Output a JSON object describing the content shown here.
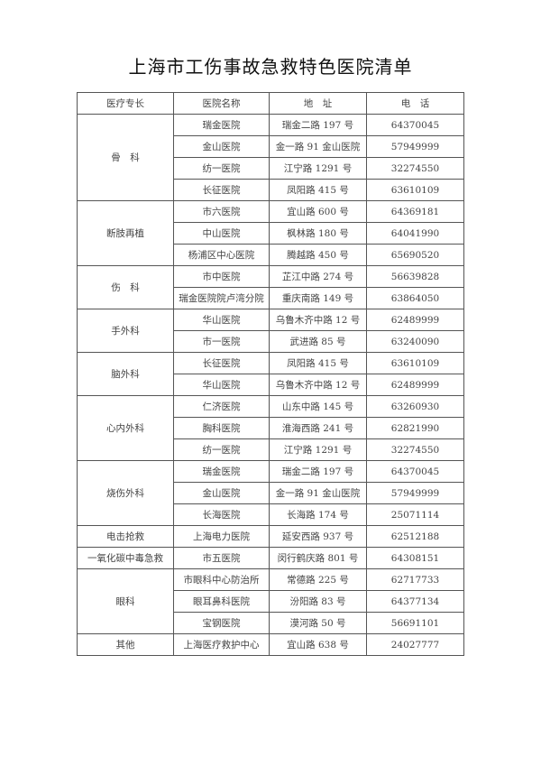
{
  "title": "上海市工伤事故急救特色医院清单",
  "headers": [
    "医疗专长",
    "医院名称",
    "地　址",
    "电　话"
  ],
  "groups": [
    {
      "specialty": "骨　科",
      "rows": [
        [
          "瑞金医院",
          "瑞金二路 197 号",
          "64370045"
        ],
        [
          "金山医院",
          "金一路 91 金山医院",
          "57949999"
        ],
        [
          "纺一医院",
          "江宁路 1291 号",
          "32274550"
        ],
        [
          "长征医院",
          "凤阳路 415 号",
          "63610109"
        ]
      ]
    },
    {
      "specialty": "断肢再植",
      "rows": [
        [
          "市六医院",
          "宜山路 600 号",
          "64369181"
        ],
        [
          "中山医院",
          "枫林路 180 号",
          "64041990"
        ],
        [
          "杨浦区中心医院",
          "腾越路 450 号",
          "65690520"
        ]
      ]
    },
    {
      "specialty": "伤　科",
      "rows": [
        [
          "市中医院",
          "芷江中路 274 号",
          "56639828"
        ],
        [
          "瑞金医院院卢湾分院",
          "重庆南路 149 号",
          "63864050"
        ]
      ]
    },
    {
      "specialty": "手外科",
      "rows": [
        [
          "华山医院",
          "乌鲁木齐中路 12 号",
          "62489999"
        ],
        [
          "市一医院",
          "武进路 85 号",
          "63240090"
        ]
      ]
    },
    {
      "specialty": "脑外科",
      "rows": [
        [
          "长征医院",
          "凤阳路 415 号",
          "63610109"
        ],
        [
          "华山医院",
          "乌鲁木齐中路 12 号",
          "62489999"
        ]
      ]
    },
    {
      "specialty": "心内外科",
      "rows": [
        [
          "仁济医院",
          "山东中路 145 号",
          "63260930"
        ],
        [
          "胸科医院",
          "淮海西路 241 号",
          "62821990"
        ],
        [
          "纺一医院",
          "江宁路 1291 号",
          "32274550"
        ]
      ]
    },
    {
      "specialty": "烧伤外科",
      "rows": [
        [
          "瑞金医院",
          "瑞金二路 197 号",
          "64370045"
        ],
        [
          "金山医院",
          "金一路 91 金山医院",
          "57949999"
        ],
        [
          "长海医院",
          "长海路 174 号",
          "25071114"
        ]
      ]
    },
    {
      "specialty": "电击抢救",
      "rows": [
        [
          "上海电力医院",
          "延安西路 937 号",
          "62512188"
        ]
      ]
    },
    {
      "specialty": "一氧化碳中毒急救",
      "rows": [
        [
          "市五医院",
          "闵行鹤庆路 801 号",
          "64308151"
        ]
      ]
    },
    {
      "specialty": "眼科",
      "rows": [
        [
          "市眼科中心防治所",
          "常德路 225 号",
          "62717733"
        ],
        [
          "眼耳鼻科医院",
          "汾阳路 83 号",
          "64377134"
        ],
        [
          "宝钢医院",
          "漠河路 50 号",
          "56691101"
        ]
      ]
    },
    {
      "specialty": "其他",
      "rows": [
        [
          "上海医疗救护中心",
          "宜山路 638 号",
          "24027777"
        ]
      ]
    }
  ]
}
